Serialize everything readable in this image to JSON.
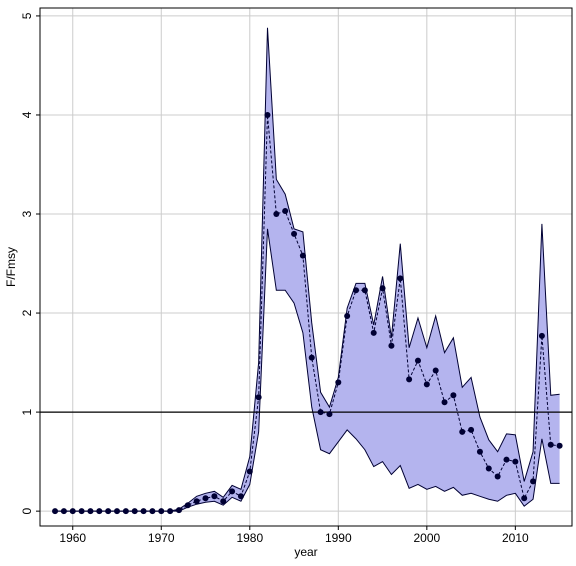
{
  "chart_data": {
    "type": "band-line",
    "xlabel": "year",
    "ylabel": "F/Fmsy",
    "x": [
      1958,
      1959,
      1960,
      1961,
      1962,
      1963,
      1964,
      1965,
      1966,
      1967,
      1968,
      1969,
      1970,
      1971,
      1972,
      1973,
      1974,
      1975,
      1976,
      1977,
      1978,
      1979,
      1980,
      1981,
      1982,
      1983,
      1984,
      1985,
      1986,
      1987,
      1988,
      1989,
      1990,
      1991,
      1992,
      1993,
      1994,
      1995,
      1996,
      1997,
      1998,
      1999,
      2000,
      2001,
      2002,
      2003,
      2004,
      2005,
      2006,
      2007,
      2008,
      2009,
      2010,
      2011,
      2012,
      2013,
      2014,
      2015
    ],
    "values": [
      0,
      0,
      0,
      0,
      0,
      0,
      0,
      0,
      0,
      0,
      0,
      0,
      0,
      0,
      0.01,
      0.06,
      0.1,
      0.13,
      0.15,
      0.1,
      0.2,
      0.15,
      0.4,
      1.15,
      4.0,
      3.0,
      3.03,
      2.8,
      2.58,
      1.55,
      1.0,
      0.98,
      1.3,
      1.97,
      2.23,
      2.23,
      1.8,
      2.25,
      1.67,
      2.35,
      1.33,
      1.52,
      1.28,
      1.42,
      1.1,
      1.17,
      0.8,
      0.82,
      0.6,
      0.43,
      0.35,
      0.52,
      0.5,
      0.13,
      0.3,
      1.77,
      0.67,
      0.66
    ],
    "upper": [
      0,
      0,
      0,
      0,
      0,
      0,
      0,
      0,
      0,
      0,
      0,
      0,
      0,
      0,
      0.02,
      0.08,
      0.15,
      0.18,
      0.2,
      0.14,
      0.26,
      0.22,
      0.55,
      1.5,
      4.88,
      3.35,
      3.2,
      2.85,
      2.82,
      1.9,
      1.2,
      1.05,
      1.35,
      2.05,
      2.3,
      2.3,
      1.88,
      2.37,
      1.75,
      2.7,
      1.65,
      1.95,
      1.65,
      1.97,
      1.6,
      1.75,
      1.25,
      1.35,
      0.95,
      0.72,
      0.6,
      0.78,
      0.77,
      0.3,
      0.6,
      2.9,
      1.17,
      1.18
    ],
    "lower": [
      0,
      0,
      0,
      0,
      0,
      0,
      0,
      0,
      0,
      0,
      0,
      0,
      0,
      0,
      0,
      0.04,
      0.07,
      0.09,
      0.1,
      0.06,
      0.14,
      0.1,
      0.27,
      0.8,
      2.85,
      2.23,
      2.23,
      2.1,
      1.8,
      1.05,
      0.62,
      0.58,
      0.7,
      0.82,
      0.73,
      0.62,
      0.45,
      0.5,
      0.37,
      0.46,
      0.23,
      0.27,
      0.22,
      0.25,
      0.2,
      0.24,
      0.16,
      0.18,
      0.15,
      0.12,
      0.1,
      0.16,
      0.18,
      0.05,
      0.12,
      0.73,
      0.28,
      0.28
    ],
    "hline": 1,
    "color": "#000033",
    "band_color": "#b4b4ee",
    "xlim": [
      1956.3,
      2016.4
    ],
    "ylim": [
      -0.15,
      5.08
    ],
    "xticks": [
      1960,
      1970,
      1980,
      1990,
      2000,
      2010
    ],
    "yticks": [
      0,
      1,
      2,
      3,
      4,
      5
    ],
    "grid": true
  }
}
